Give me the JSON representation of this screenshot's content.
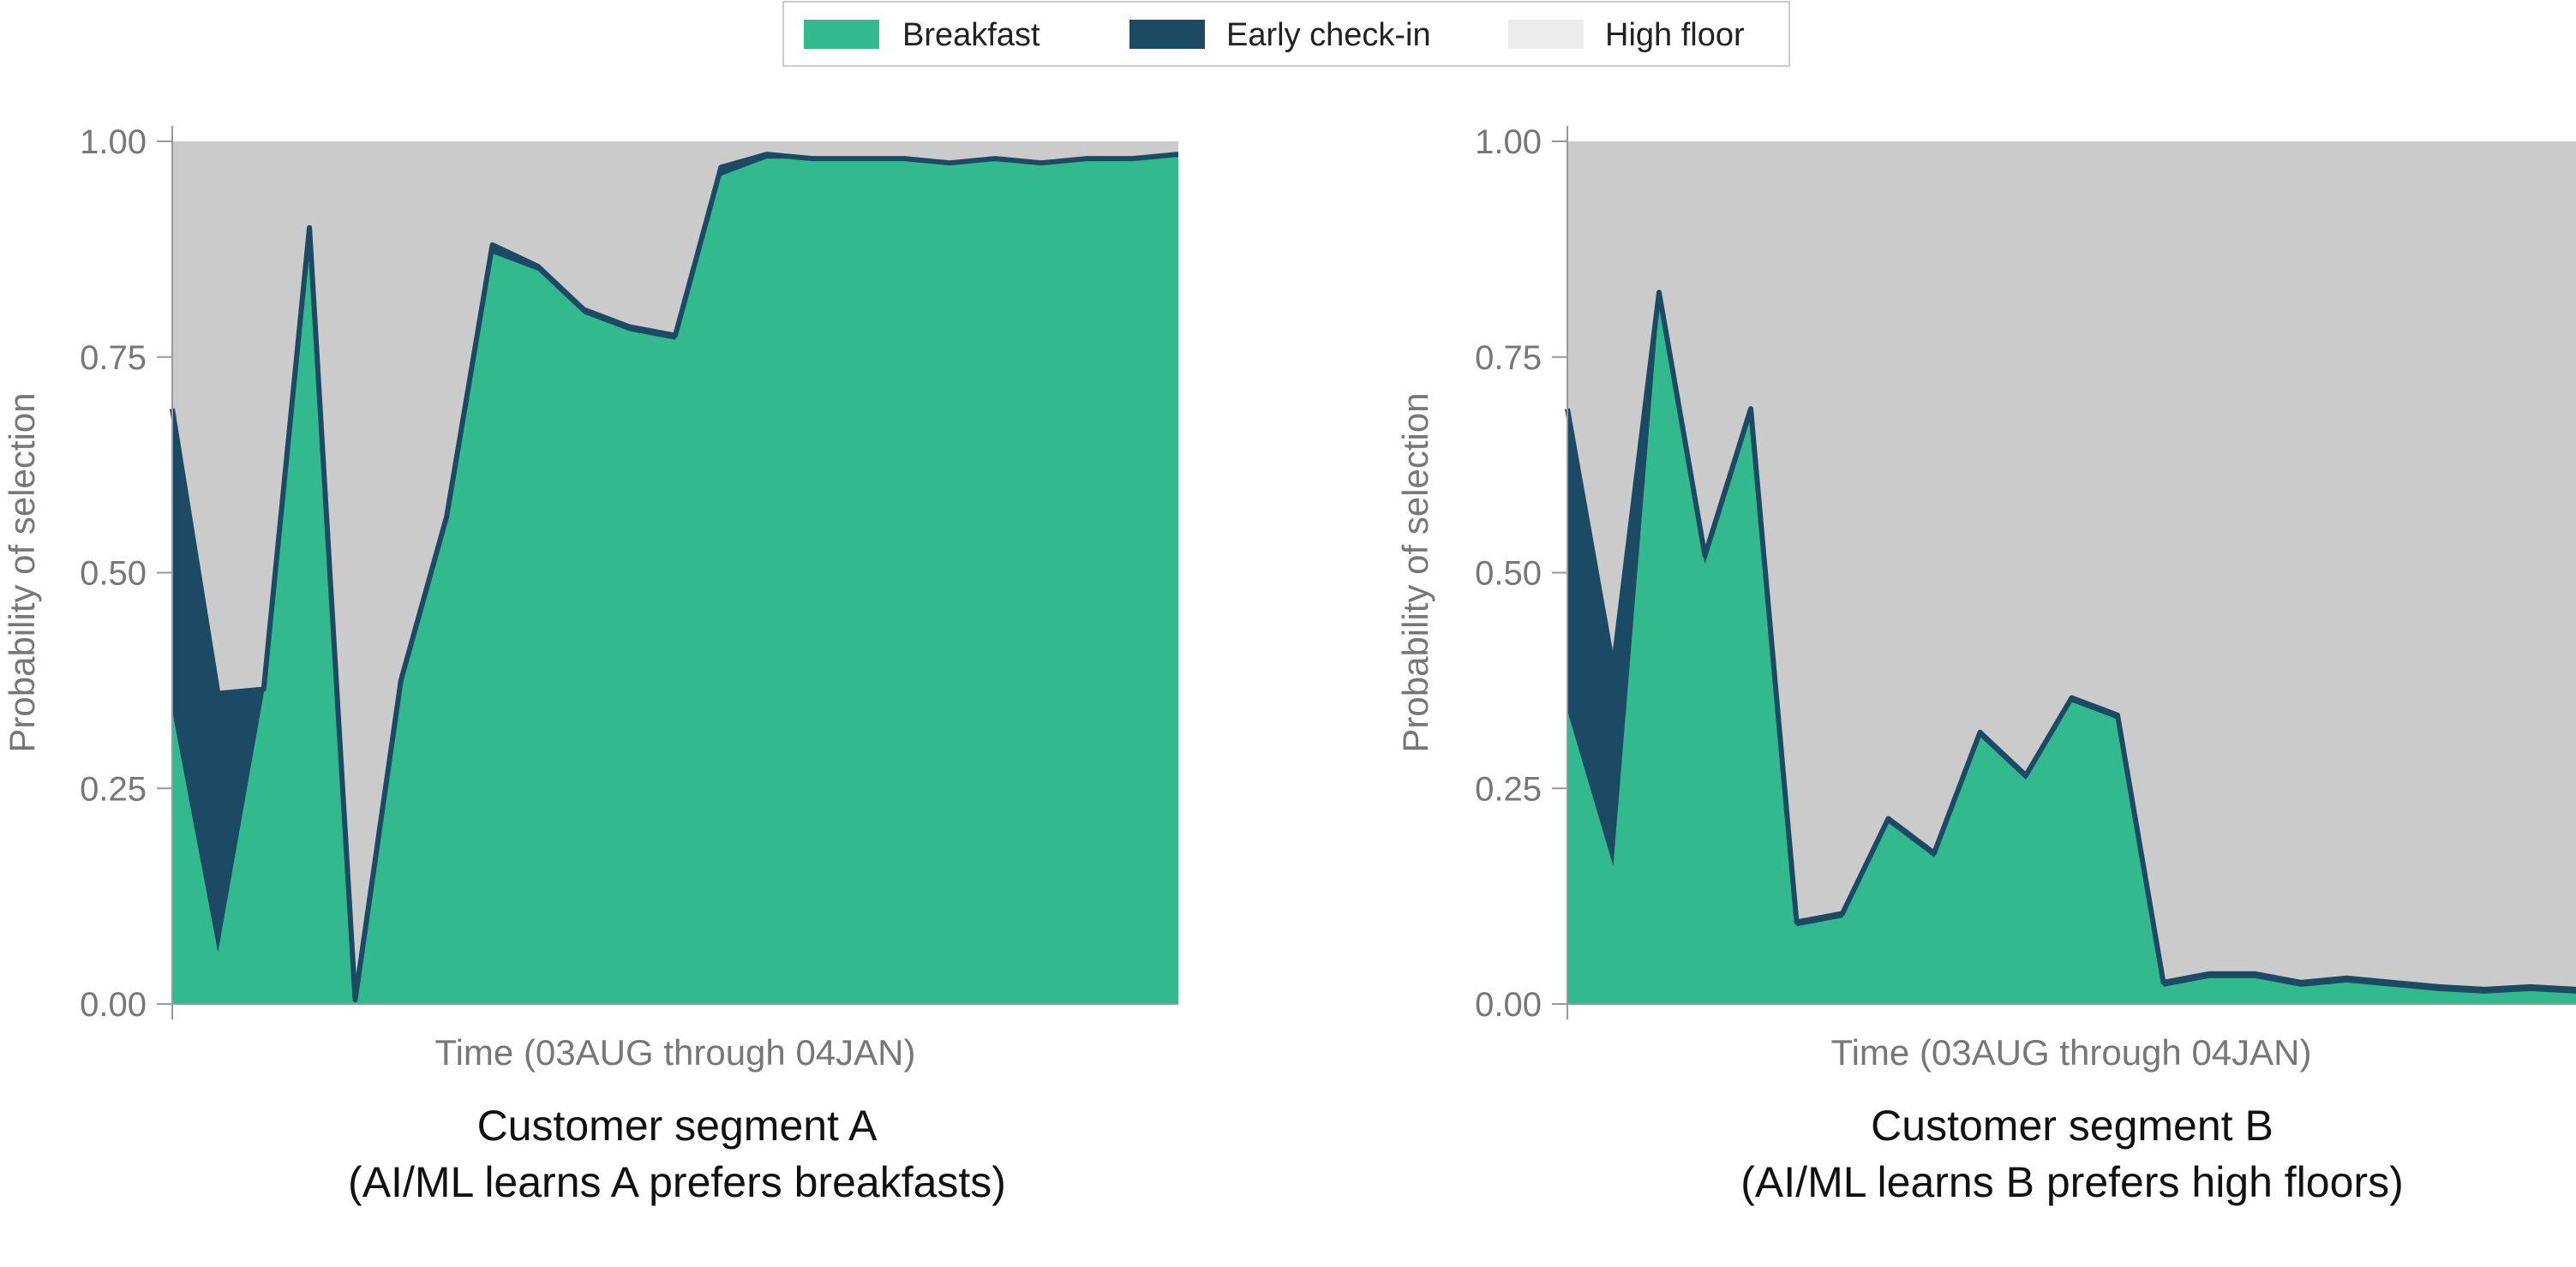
{
  "legend": {
    "items": [
      {
        "label": "Breakfast",
        "color": "#33b98e"
      },
      {
        "label": "Early check-in",
        "color": "#1c4a65"
      },
      {
        "label": "High floor",
        "color": "#ececec"
      }
    ]
  },
  "colors": {
    "breakfast": "#33b98e",
    "early_checkin": "#1c4a65",
    "high_floor_plot": "#cbcbcb",
    "high_floor_legend": "#ececec",
    "axis_text": "#777777"
  },
  "chart_data": [
    {
      "type": "area",
      "stacked": true,
      "title": "Customer segment A",
      "subtitle": "(AI/ML learns A prefers breakfasts)",
      "xlabel": "Time (03AUG through 04JAN)",
      "ylabel": "Probability of selection",
      "ylim": [
        0,
        1
      ],
      "yticks": [
        "0.00",
        "0.25",
        "0.50",
        "0.75",
        "1.00"
      ],
      "x": [
        1,
        2,
        3,
        4,
        5,
        6,
        7,
        8,
        9,
        10,
        11,
        12,
        13,
        14,
        15,
        16,
        17,
        18,
        19,
        20,
        21,
        22,
        23
      ],
      "series": [
        {
          "name": "Breakfast",
          "values": [
            0.34,
            0.06,
            0.36,
            0.89,
            0.0,
            0.37,
            0.56,
            0.87,
            0.85,
            0.8,
            0.78,
            0.77,
            0.96,
            0.98,
            0.98,
            0.98,
            0.98,
            0.975,
            0.98,
            0.975,
            0.98,
            0.98,
            0.985
          ]
        },
        {
          "name": "Early check-in",
          "values": [
            0.35,
            0.3,
            0.005,
            0.01,
            0.005,
            0.005,
            0.005,
            0.01,
            0.005,
            0.005,
            0.005,
            0.005,
            0.01,
            0.005,
            0.0,
            0.0,
            0.0,
            0.0,
            0.0,
            0.0,
            0.0,
            0.0,
            0.0
          ]
        },
        {
          "name": "High floor",
          "values": [
            0.31,
            0.64,
            0.635,
            0.1,
            0.995,
            0.625,
            0.435,
            0.12,
            0.145,
            0.195,
            0.215,
            0.225,
            0.03,
            0.015,
            0.02,
            0.02,
            0.02,
            0.025,
            0.02,
            0.025,
            0.02,
            0.02,
            0.015
          ]
        }
      ]
    },
    {
      "type": "area",
      "stacked": true,
      "title": "Customer segment B",
      "subtitle": "(AI/ML learns B prefers high floors)",
      "xlabel": "Time (03AUG through 04JAN)",
      "ylabel": "Probability of selection",
      "ylim": [
        0,
        1
      ],
      "yticks": [
        "0.00",
        "0.25",
        "0.50",
        "0.75",
        "1.00"
      ],
      "x": [
        1,
        2,
        3,
        4,
        5,
        6,
        7,
        8,
        9,
        10,
        11,
        12,
        13,
        14,
        15,
        16,
        17,
        18,
        19,
        20,
        21,
        22,
        23
      ],
      "series": [
        {
          "name": "Breakfast",
          "values": [
            0.34,
            0.16,
            0.81,
            0.51,
            0.68,
            0.09,
            0.1,
            0.21,
            0.17,
            0.31,
            0.26,
            0.35,
            0.33,
            0.02,
            0.03,
            0.03,
            0.02,
            0.025,
            0.02,
            0.015,
            0.012,
            0.015,
            0.012
          ]
        },
        {
          "name": "Early check-in",
          "values": [
            0.35,
            0.23,
            0.015,
            0.01,
            0.01,
            0.005,
            0.005,
            0.005,
            0.005,
            0.005,
            0.005,
            0.005,
            0.005,
            0.005,
            0.005,
            0.005,
            0.005,
            0.005,
            0.005,
            0.005,
            0.005,
            0.005,
            0.005
          ]
        },
        {
          "name": "High floor",
          "values": [
            0.31,
            0.61,
            0.175,
            0.48,
            0.31,
            0.905,
            0.895,
            0.785,
            0.825,
            0.685,
            0.735,
            0.645,
            0.665,
            0.975,
            0.965,
            0.965,
            0.975,
            0.97,
            0.975,
            0.98,
            0.983,
            0.98,
            0.983
          ]
        }
      ]
    }
  ]
}
